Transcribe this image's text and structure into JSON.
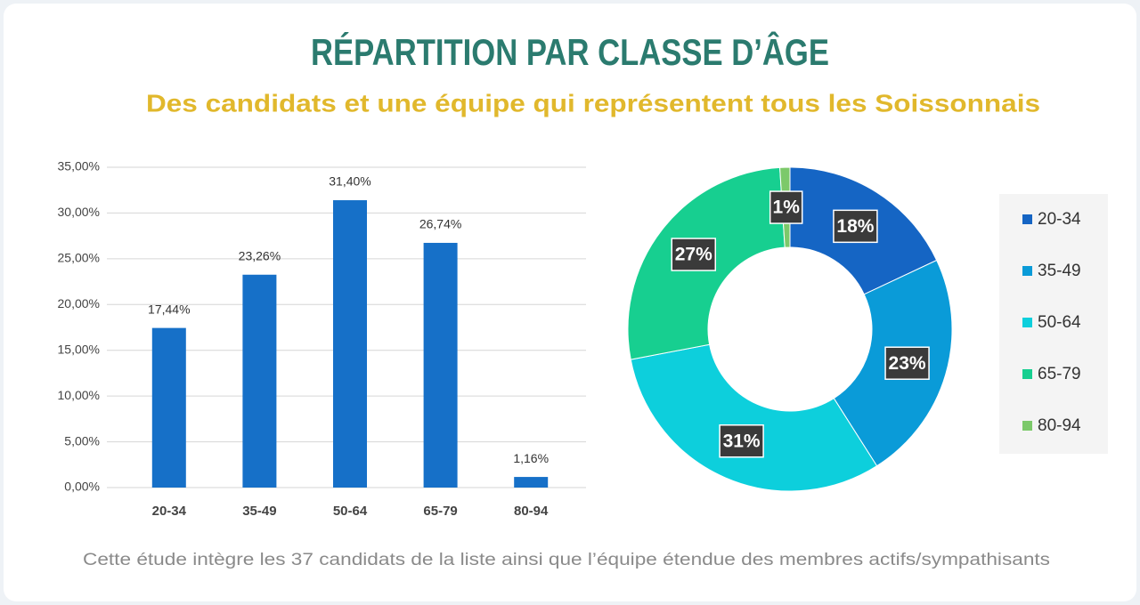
{
  "header": {
    "title": "RÉPARTITION PAR CLASSE D’ÂGE",
    "subtitle": "Des candidats et une équipe qui représentent tous les Soissonnais"
  },
  "footnote": "Cette étude intègre les 37 candidats de la liste ainsi que l’équipe étendue des membres actifs/sympathisants",
  "chart_data": [
    {
      "type": "bar",
      "categories": [
        "20-34",
        "35-49",
        "50-64",
        "65-79",
        "80-94"
      ],
      "values": [
        17.44,
        23.26,
        31.4,
        26.74,
        1.16
      ],
      "value_labels": [
        "17,44%",
        "23,26%",
        "31,40%",
        "26,74%",
        "1,16%"
      ],
      "color": "#1670c8",
      "ylim": [
        0,
        35
      ],
      "yticks": [
        {
          "value": 0,
          "label": "0,00%"
        },
        {
          "value": 5,
          "label": "5,00%"
        },
        {
          "value": 10,
          "label": "10,00%"
        },
        {
          "value": 15,
          "label": "15,00%"
        },
        {
          "value": 20,
          "label": "20,00%"
        },
        {
          "value": 25,
          "label": "25,00%"
        },
        {
          "value": 30,
          "label": "30,00%"
        },
        {
          "value": 35,
          "label": "35,00%"
        }
      ],
      "grid": true
    },
    {
      "type": "donut",
      "categories": [
        "20-34",
        "35-49",
        "50-64",
        "65-79",
        "80-94"
      ],
      "values": [
        18,
        23,
        31,
        27,
        1
      ],
      "value_labels": [
        "18%",
        "23%",
        "31%",
        "27%",
        "1%"
      ],
      "colors": [
        "#1565c4",
        "#0a9bd8",
        "#0dcfdc",
        "#17cf90",
        "#7cc96a"
      ],
      "legend": "right"
    }
  ]
}
